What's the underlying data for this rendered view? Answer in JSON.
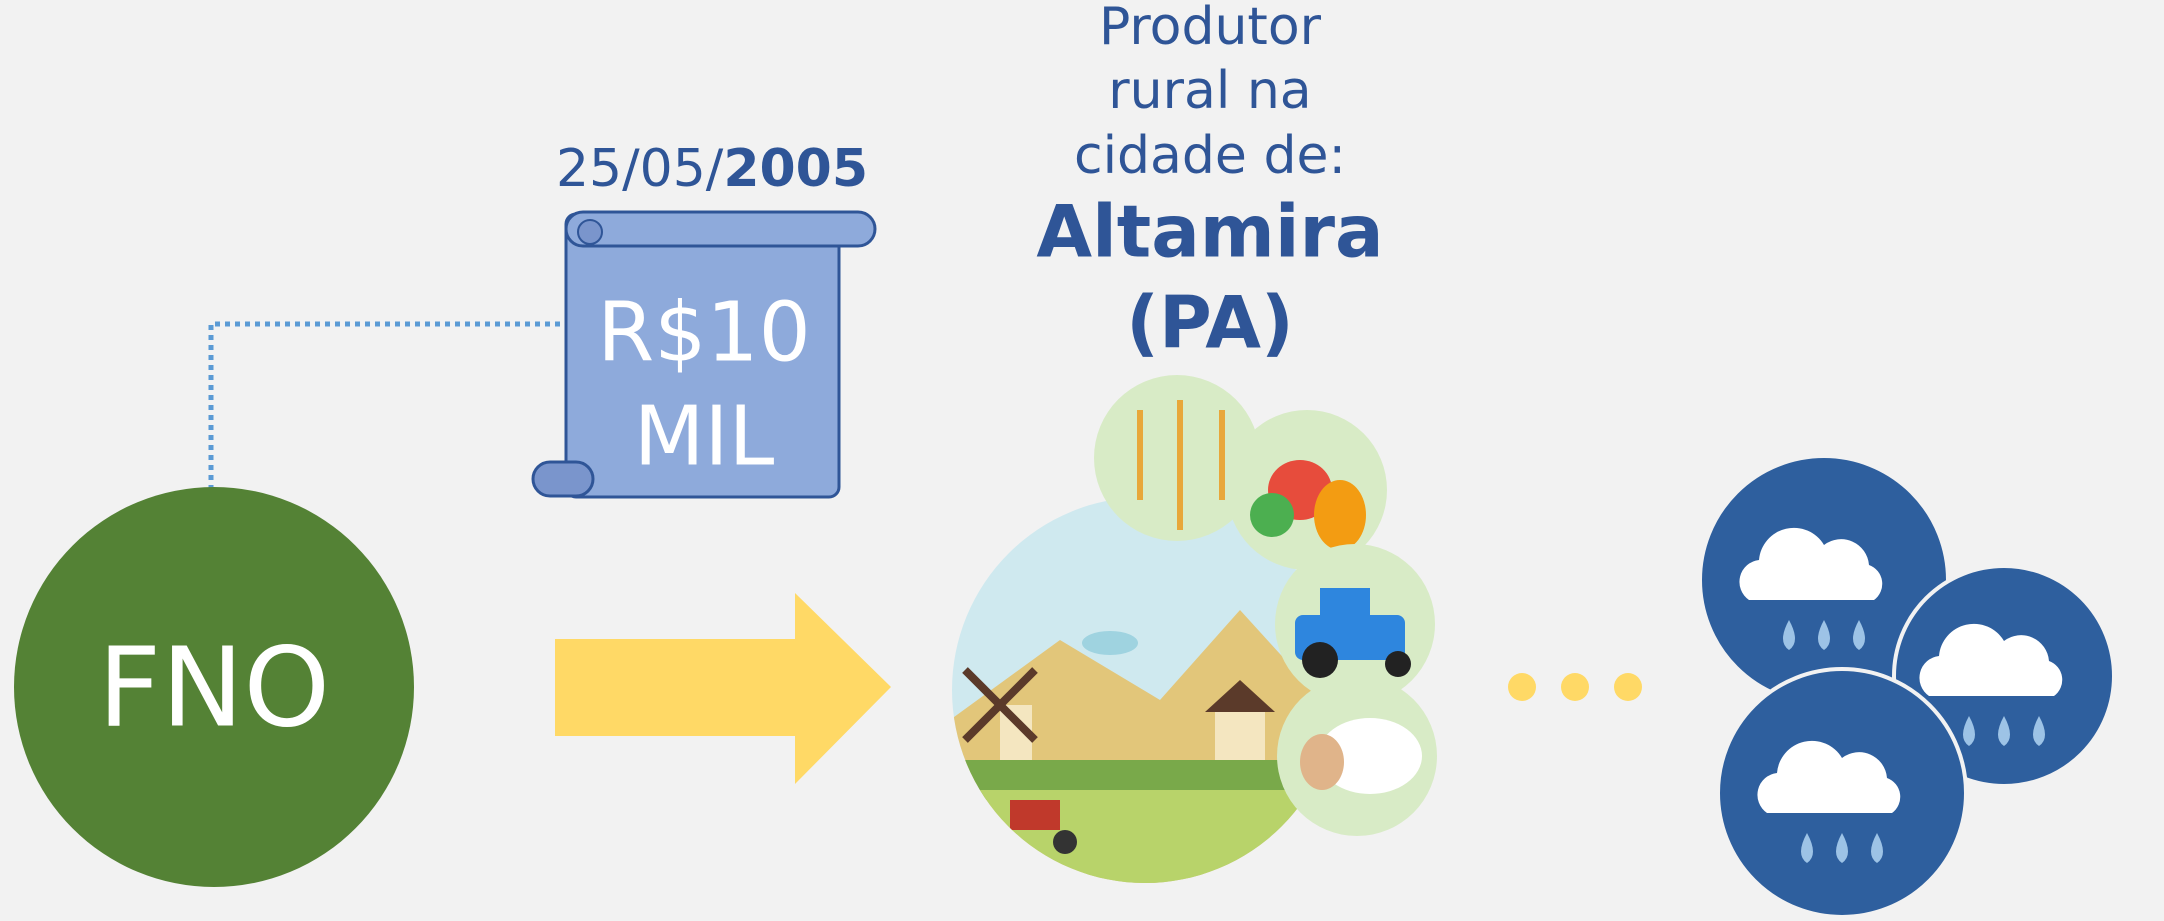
{
  "source": {
    "label": "FNO"
  },
  "loan": {
    "date": {
      "day_month": "25/05/",
      "year": "2005"
    },
    "amount": [
      "R$10",
      "MIL"
    ]
  },
  "recipient": {
    "description": [
      "Produtor",
      "rural na",
      "cidade de:"
    ],
    "city": [
      "Altamira",
      "(PA)"
    ]
  }
}
